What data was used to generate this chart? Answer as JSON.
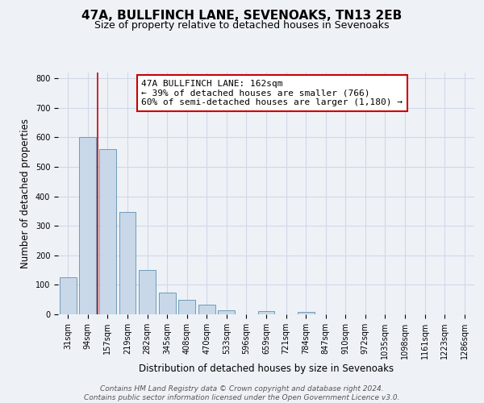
{
  "title": "47A, BULLFINCH LANE, SEVENOAKS, TN13 2EB",
  "subtitle": "Size of property relative to detached houses in Sevenoaks",
  "xlabel": "Distribution of detached houses by size in Sevenoaks",
  "ylabel": "Number of detached properties",
  "bin_labels": [
    "31sqm",
    "94sqm",
    "157sqm",
    "219sqm",
    "282sqm",
    "345sqm",
    "408sqm",
    "470sqm",
    "533sqm",
    "596sqm",
    "659sqm",
    "721sqm",
    "784sqm",
    "847sqm",
    "910sqm",
    "972sqm",
    "1035sqm",
    "1098sqm",
    "1161sqm",
    "1223sqm",
    "1286sqm"
  ],
  "bar_values": [
    127,
    601,
    559,
    348,
    151,
    75,
    50,
    34,
    15,
    0,
    12,
    0,
    7,
    0,
    0,
    0,
    0,
    0,
    0,
    0,
    0
  ],
  "bar_color": "#c8d8e8",
  "bar_edge_color": "#6090b0",
  "property_line_color": "#cc0000",
  "annotation_text": "47A BULLFINCH LANE: 162sqm\n← 39% of detached houses are smaller (766)\n60% of semi-detached houses are larger (1,180) →",
  "annotation_box_color": "#ffffff",
  "annotation_box_edge_color": "#cc0000",
  "ylim": [
    0,
    820
  ],
  "yticks": [
    0,
    100,
    200,
    300,
    400,
    500,
    600,
    700,
    800
  ],
  "grid_color": "#d0d8e8",
  "background_color": "#eef2f7",
  "footer_text": "Contains HM Land Registry data © Crown copyright and database right 2024.\nContains public sector information licensed under the Open Government Licence v3.0.",
  "title_fontsize": 11,
  "subtitle_fontsize": 9,
  "axis_label_fontsize": 8.5,
  "tick_fontsize": 7,
  "annotation_fontsize": 8,
  "footer_fontsize": 6.5
}
